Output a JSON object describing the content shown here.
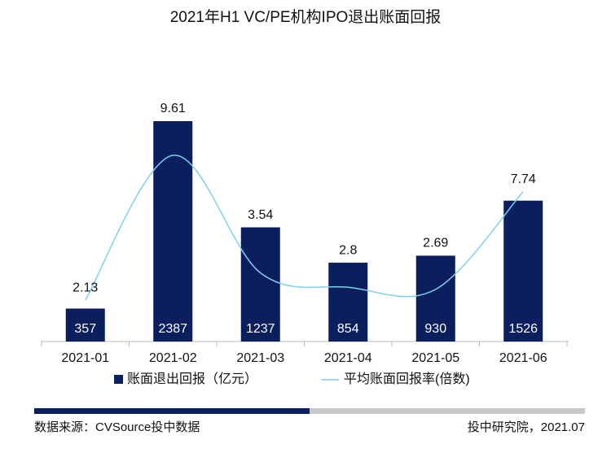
{
  "chart_data": {
    "type": "bar",
    "title": "2021年H1 VC/PE机构IPO退出账面回报",
    "categories": [
      "2021-01",
      "2021-02",
      "2021-03",
      "2021-04",
      "2021-05",
      "2021-06"
    ],
    "series": [
      {
        "name": "账面退出回报（亿元）",
        "type": "bar",
        "color": "#0b1f5e",
        "values": [
          357,
          2387,
          1237,
          854,
          930,
          1526
        ]
      },
      {
        "name": "平均账面回报率(倍数)",
        "type": "line",
        "color": "#7fd0ea",
        "values": [
          2.13,
          9.61,
          3.54,
          2.8,
          2.69,
          7.74
        ]
      }
    ]
  },
  "footer": {
    "source": "数据来源：CVSource投中数据",
    "credit": "投中研究院，2021.07"
  }
}
